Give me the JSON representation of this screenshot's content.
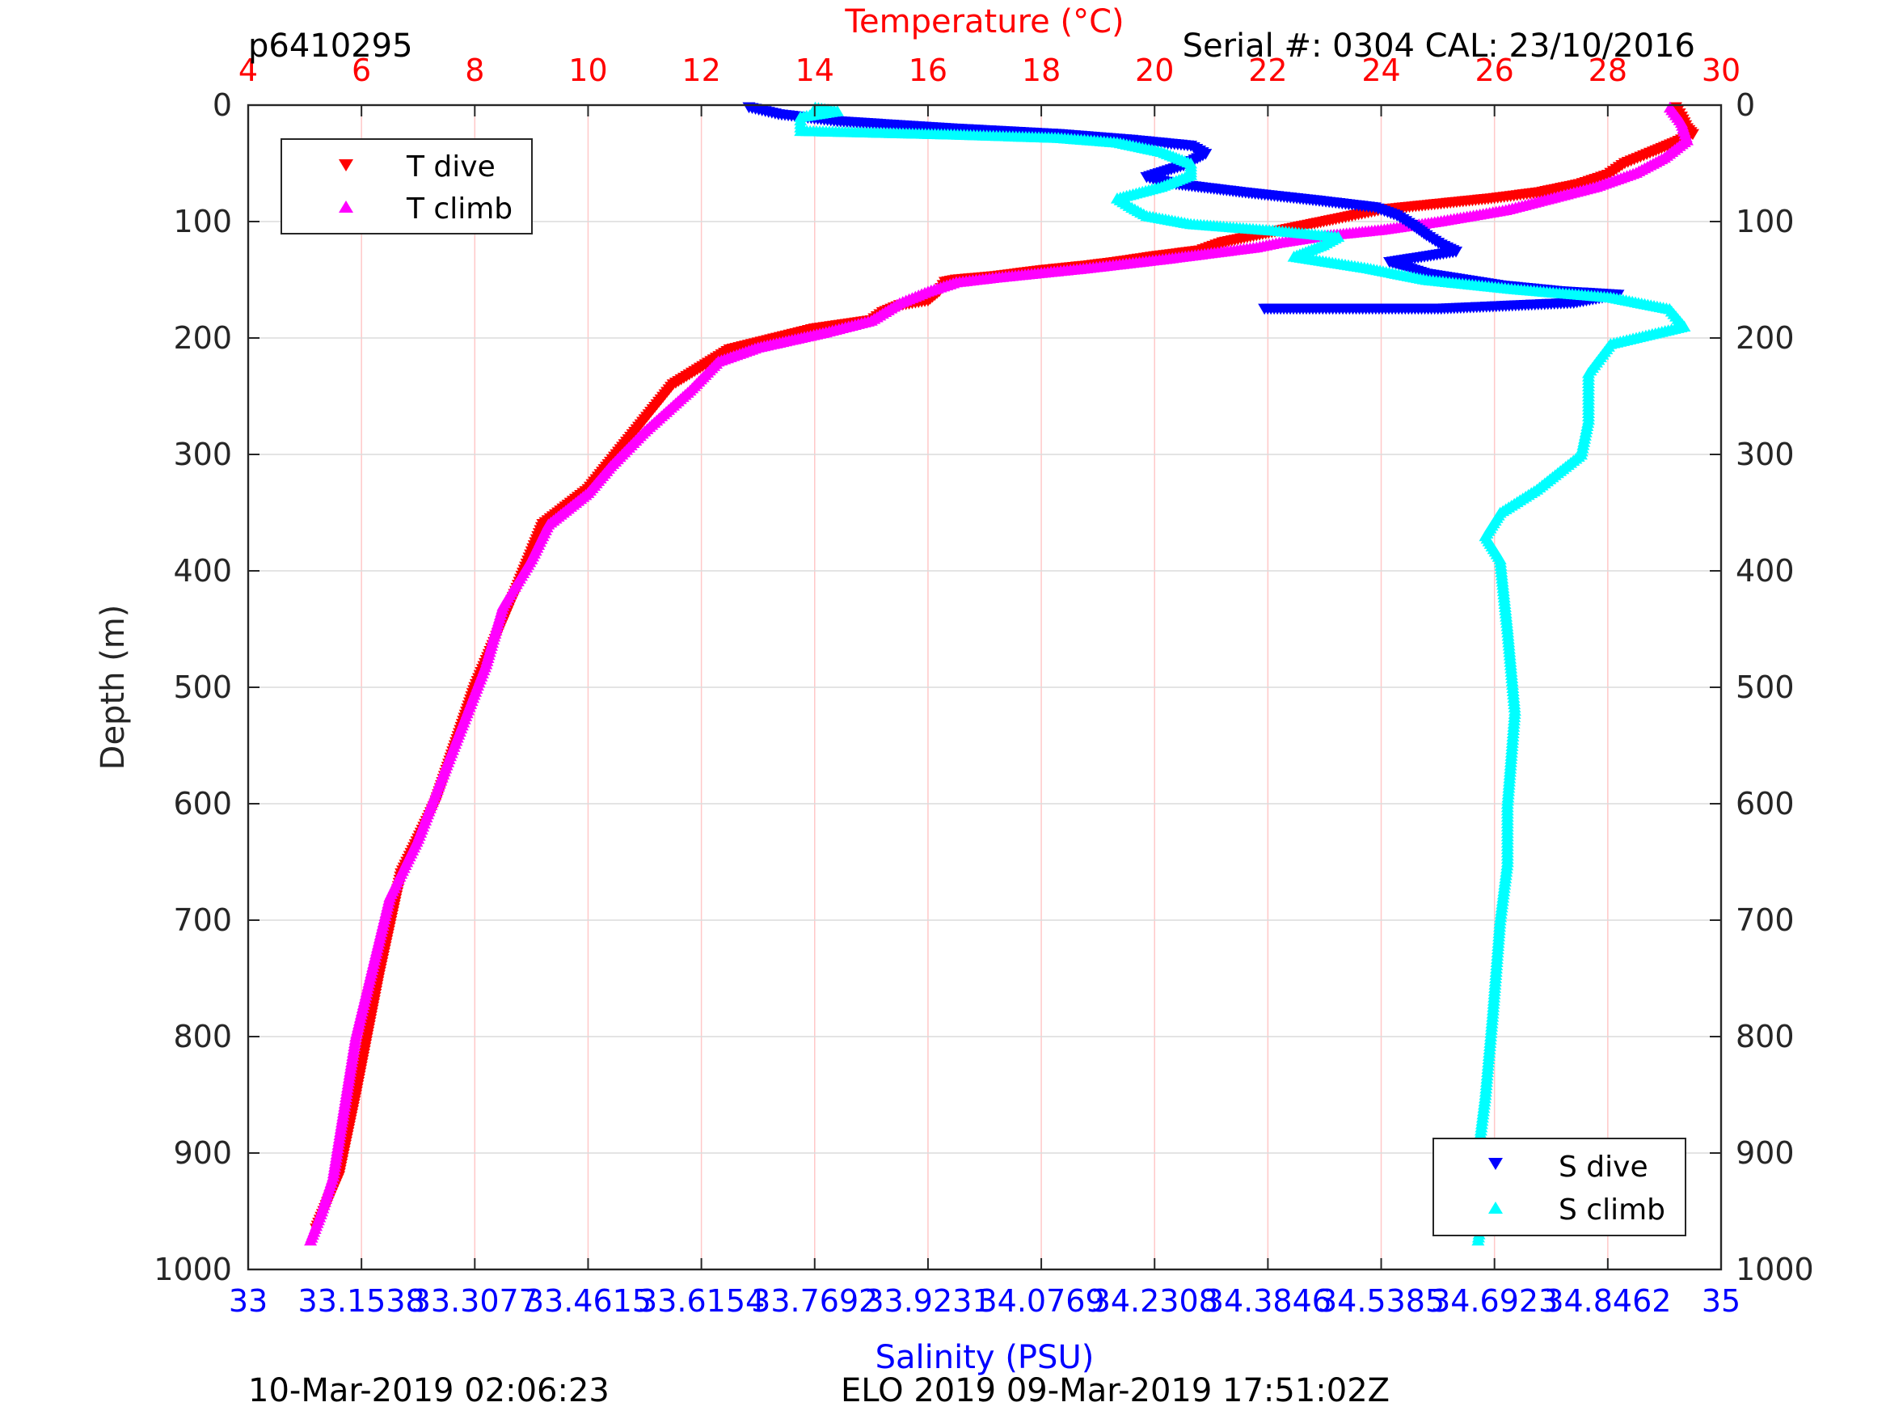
{
  "header": {
    "glider_id": "p6410295",
    "serial": "Serial #: 0304  CAL: 23/10/2016"
  },
  "footer": {
    "timestamp": "10-Mar-2019 02:06:23",
    "mission": "ELO 2019 09-Mar-2019 17:51:02Z"
  },
  "colors": {
    "t_dive": "#ff0000",
    "t_climb": "#ff00ff",
    "s_dive": "#0000ff",
    "s_climb": "#00ffff",
    "temp_axis": "#ff0000",
    "sal_axis": "#0000ff",
    "grid_vertical": "#ffc8c8",
    "grid_horizontal": "#dcdcdc"
  },
  "chart_data": {
    "type": "scatter",
    "title": "Temperature (°C)",
    "xlabel_top": "Temperature (°C)",
    "xlabel_bottom": "Salinity (PSU)",
    "ylabel": "Depth (m)",
    "temperature_axis": {
      "range": [
        4,
        30
      ],
      "ticks": [
        "4",
        "6",
        "8",
        "10",
        "12",
        "14",
        "16",
        "18",
        "20",
        "22",
        "24",
        "26",
        "28",
        "30"
      ]
    },
    "salinity_axis": {
      "range": [
        33,
        35
      ],
      "ticks": [
        "33",
        "33.1538",
        "33.3077",
        "33.4615",
        "33.6154",
        "33.7692",
        "33.9231",
        "34.0769",
        "34.2308",
        "34.3846",
        "34.5385",
        "34.6923",
        "34.8462",
        "35"
      ]
    },
    "depth_axis": {
      "range": [
        0,
        1000
      ],
      "reversed": true,
      "ticks": [
        "0",
        "100",
        "200",
        "300",
        "400",
        "500",
        "600",
        "700",
        "800",
        "900",
        "1000"
      ]
    },
    "grid": true,
    "legends": [
      {
        "position": "top-left",
        "entries": [
          {
            "label": "T dive",
            "marker": "triangle-down",
            "series": "t_dive"
          },
          {
            "label": "T climb",
            "marker": "triangle-up",
            "series": "t_climb"
          }
        ]
      },
      {
        "position": "bottom-right",
        "entries": [
          {
            "label": "S dive",
            "marker": "triangle-down",
            "series": "s_dive"
          },
          {
            "label": "S climb",
            "marker": "triangle-up",
            "series": "s_climb"
          }
        ]
      }
    ],
    "series": [
      {
        "name": "T dive",
        "key": "t_dive",
        "axis": "temperature",
        "points": [
          [
            29.2,
            2
          ],
          [
            29.3,
            10
          ],
          [
            29.4,
            20
          ],
          [
            29.5,
            25
          ],
          [
            29.2,
            32
          ],
          [
            28.8,
            40
          ],
          [
            28.3,
            50
          ],
          [
            28.0,
            60
          ],
          [
            27.5,
            68
          ],
          [
            26.8,
            75
          ],
          [
            26.0,
            80
          ],
          [
            25.0,
            85
          ],
          [
            24.0,
            90
          ],
          [
            23.2,
            98
          ],
          [
            22.5,
            105
          ],
          [
            21.8,
            112
          ],
          [
            21.2,
            118
          ],
          [
            20.8,
            125
          ],
          [
            20.0,
            130
          ],
          [
            19.3,
            135
          ],
          [
            18.8,
            138
          ],
          [
            18.0,
            142
          ],
          [
            17.2,
            147
          ],
          [
            16.5,
            150
          ],
          [
            16.3,
            152
          ],
          [
            16.2,
            160
          ],
          [
            16.0,
            168
          ],
          [
            15.5,
            172
          ],
          [
            15.2,
            178
          ],
          [
            15.0,
            185
          ],
          [
            14.0,
            192
          ],
          [
            12.5,
            210
          ],
          [
            11.5,
            240
          ],
          [
            11.0,
            270
          ],
          [
            10.5,
            300
          ],
          [
            10.0,
            330
          ],
          [
            9.2,
            360
          ],
          [
            8.7,
            420
          ],
          [
            8.0,
            500
          ],
          [
            7.3,
            600
          ],
          [
            6.7,
            660
          ],
          [
            6.3,
            750
          ],
          [
            5.9,
            850
          ],
          [
            5.6,
            920
          ],
          [
            5.2,
            965
          ]
        ]
      },
      {
        "name": "T climb",
        "key": "t_climb",
        "axis": "temperature",
        "points": [
          [
            29.1,
            2
          ],
          [
            29.3,
            15
          ],
          [
            29.4,
            30
          ],
          [
            29.0,
            45
          ],
          [
            28.5,
            58
          ],
          [
            27.8,
            70
          ],
          [
            27.0,
            80
          ],
          [
            26.2,
            90
          ],
          [
            25.0,
            100
          ],
          [
            24.0,
            107
          ],
          [
            23.0,
            112
          ],
          [
            22.2,
            118
          ],
          [
            21.8,
            122
          ],
          [
            21.0,
            127
          ],
          [
            20.2,
            132
          ],
          [
            19.5,
            136
          ],
          [
            18.8,
            140
          ],
          [
            18.0,
            144
          ],
          [
            17.2,
            148
          ],
          [
            16.5,
            152
          ],
          [
            16.0,
            160
          ],
          [
            15.5,
            170
          ],
          [
            15.0,
            185
          ],
          [
            14.2,
            195
          ],
          [
            13.0,
            208
          ],
          [
            12.3,
            220
          ],
          [
            11.8,
            245
          ],
          [
            11.0,
            280
          ],
          [
            10.4,
            310
          ],
          [
            10.0,
            333
          ],
          [
            9.3,
            360
          ],
          [
            9.0,
            390
          ],
          [
            8.5,
            430
          ],
          [
            8.2,
            480
          ],
          [
            7.8,
            530
          ],
          [
            7.4,
            580
          ],
          [
            7.0,
            630
          ],
          [
            6.5,
            680
          ],
          [
            6.2,
            740
          ],
          [
            5.9,
            800
          ],
          [
            5.7,
            860
          ],
          [
            5.5,
            920
          ],
          [
            5.3,
            950
          ],
          [
            5.1,
            975
          ]
        ]
      },
      {
        "name": "S dive",
        "key": "s_dive",
        "axis": "salinity",
        "points": [
          [
            33.68,
            2
          ],
          [
            33.72,
            8
          ],
          [
            33.8,
            14
          ],
          [
            33.95,
            20
          ],
          [
            34.1,
            25
          ],
          [
            34.2,
            30
          ],
          [
            34.28,
            35
          ],
          [
            34.3,
            42
          ],
          [
            34.27,
            52
          ],
          [
            34.22,
            62
          ],
          [
            34.26,
            68
          ],
          [
            34.35,
            75
          ],
          [
            34.45,
            82
          ],
          [
            34.53,
            88
          ],
          [
            34.56,
            95
          ],
          [
            34.58,
            103
          ],
          [
            34.6,
            112
          ],
          [
            34.62,
            120
          ],
          [
            34.64,
            126
          ],
          [
            34.55,
            135
          ],
          [
            34.6,
            145
          ],
          [
            34.7,
            155
          ],
          [
            34.78,
            160
          ],
          [
            34.86,
            163
          ],
          [
            34.8,
            170
          ],
          [
            34.62,
            175
          ],
          [
            34.5,
            175
          ],
          [
            34.45,
            175
          ],
          [
            34.38,
            175
          ]
        ]
      },
      {
        "name": "S climb",
        "key": "s_climb",
        "axis": "salinity",
        "points": [
          [
            33.77,
            2
          ],
          [
            33.8,
            5
          ],
          [
            33.75,
            10
          ],
          [
            33.75,
            22
          ],
          [
            33.95,
            25
          ],
          [
            34.1,
            28
          ],
          [
            34.18,
            32
          ],
          [
            34.24,
            40
          ],
          [
            34.28,
            50
          ],
          [
            34.28,
            60
          ],
          [
            34.24,
            70
          ],
          [
            34.18,
            80
          ],
          [
            34.2,
            88
          ],
          [
            34.22,
            95
          ],
          [
            34.28,
            102
          ],
          [
            34.4,
            108
          ],
          [
            34.48,
            113
          ],
          [
            34.46,
            120
          ],
          [
            34.42,
            130
          ],
          [
            34.52,
            140
          ],
          [
            34.6,
            150
          ],
          [
            34.72,
            158
          ],
          [
            34.85,
            165
          ],
          [
            34.93,
            175
          ],
          [
            34.95,
            190
          ],
          [
            34.85,
            205
          ],
          [
            34.82,
            230
          ],
          [
            34.82,
            270
          ],
          [
            34.81,
            300
          ],
          [
            34.75,
            330
          ],
          [
            34.7,
            350
          ],
          [
            34.68,
            370
          ],
          [
            34.7,
            390
          ],
          [
            34.71,
            450
          ],
          [
            34.72,
            520
          ],
          [
            34.71,
            600
          ],
          [
            34.71,
            650
          ],
          [
            34.7,
            700
          ],
          [
            34.69,
            780
          ],
          [
            34.68,
            850
          ],
          [
            34.67,
            900
          ],
          [
            34.66,
            915
          ],
          [
            34.68,
            935
          ],
          [
            34.67,
            975
          ]
        ]
      }
    ]
  }
}
